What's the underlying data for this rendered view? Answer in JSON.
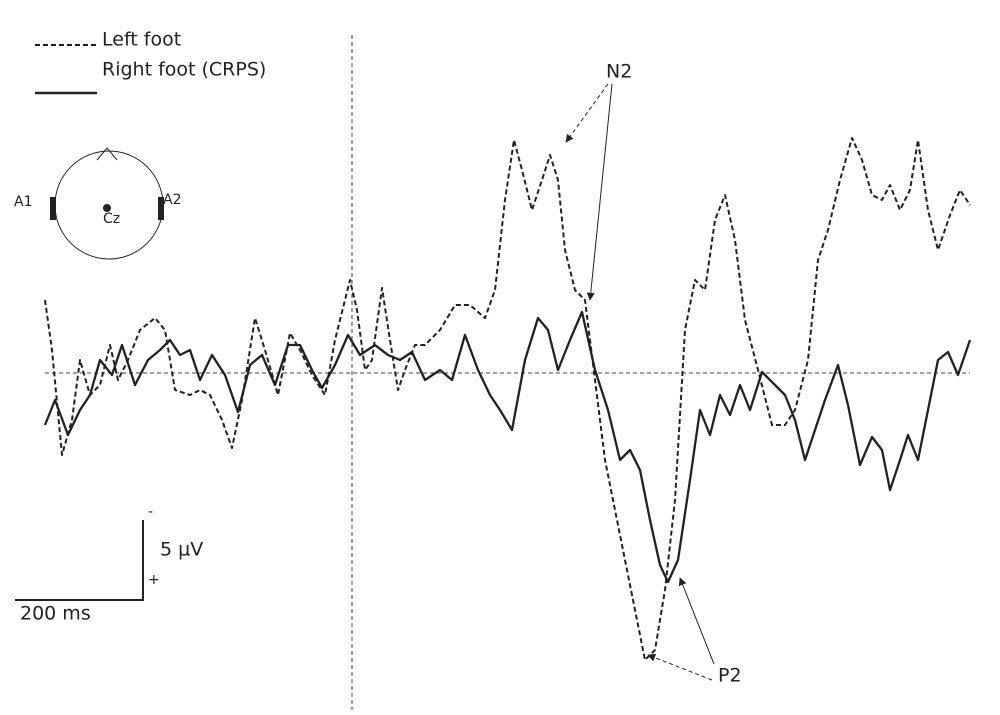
{
  "legend": {
    "items": [
      "Left foot",
      "Right foot (CRPS)"
    ]
  },
  "head": {
    "electrodes": [
      "A1",
      "A2",
      "Cz"
    ]
  },
  "components": [
    "N2",
    "P2"
  ],
  "scale_bar": {
    "negative": "-",
    "amplitude": "5 µV",
    "positive": "+",
    "time": "200 ms"
  }
}
